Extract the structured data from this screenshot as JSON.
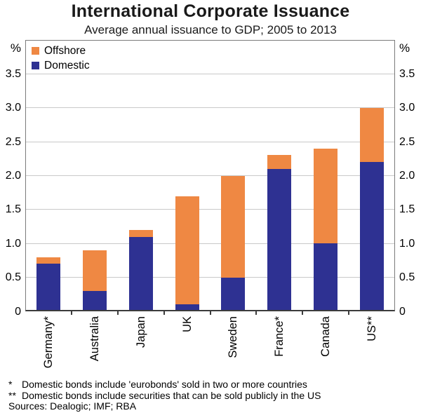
{
  "chart_data": {
    "type": "bar",
    "stacked": true,
    "title": "International Corporate Issuance",
    "subtitle": "Average annual issuance to GDP; 2005 to 2013",
    "unit": "%",
    "categories": [
      "Germany*",
      "Australia",
      "Japan",
      "UK",
      "Sweden",
      "France*",
      "Canada",
      "US**"
    ],
    "series": [
      {
        "name": "Domestic",
        "color": "#2E3192",
        "values": [
          0.7,
          0.3,
          1.1,
          0.1,
          0.5,
          2.1,
          1.0,
          2.2
        ]
      },
      {
        "name": "Offshore",
        "color": "#EF8843",
        "values": [
          0.1,
          0.6,
          0.1,
          1.6,
          1.5,
          0.2,
          1.4,
          0.8
        ]
      }
    ],
    "legend": [
      {
        "label": "Offshore",
        "color": "#EF8843"
      },
      {
        "label": "Domestic",
        "color": "#2E3192"
      }
    ],
    "legend_position": "top-left",
    "ylim": [
      0,
      4
    ],
    "grid": true,
    "yticks": [
      {
        "v": 0,
        "label": "0"
      },
      {
        "v": 0.5,
        "label": "0.5"
      },
      {
        "v": 1,
        "label": "1.0"
      },
      {
        "v": 1.5,
        "label": "1.5"
      },
      {
        "v": 2,
        "label": "2.0"
      },
      {
        "v": 2.5,
        "label": "2.5"
      },
      {
        "v": 3,
        "label": "3.0"
      },
      {
        "v": 3.5,
        "label": "3.5"
      }
    ]
  },
  "footnotes": [
    {
      "marker": "*",
      "text": "Domestic bonds include 'eurobonds' sold in two or more countries"
    },
    {
      "marker": "**",
      "text": "Domestic bonds include securities that can be sold publicly in the US"
    }
  ],
  "sources": "Sources: Dealogic; IMF; RBA"
}
